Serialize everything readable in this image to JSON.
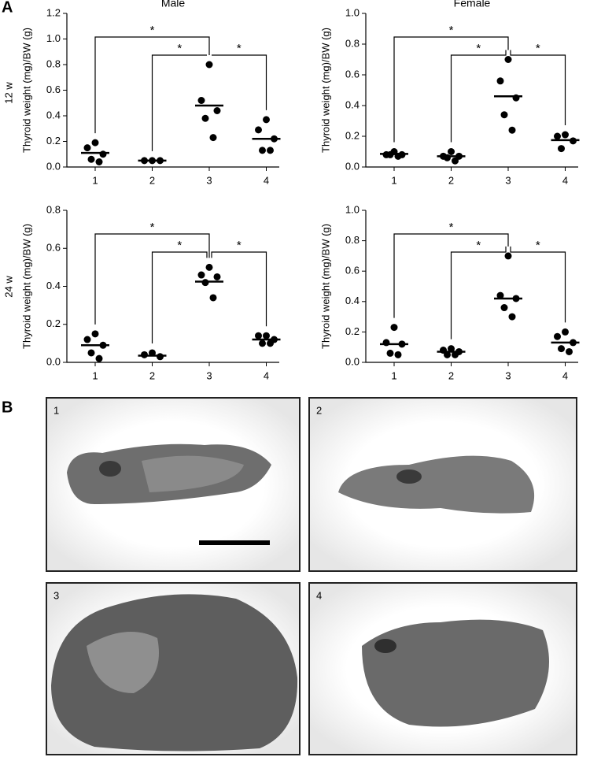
{
  "panel_labels": [
    "A",
    "B"
  ],
  "row_labels": [
    "12 w",
    "24 w"
  ],
  "chart_data": [
    {
      "type": "dotplot",
      "title": "Male",
      "ylabel": "Thyroid weight (mg)/BW (g)",
      "categories": [
        "1",
        "2",
        "3",
        "4"
      ],
      "points": [
        [
          0.19,
          0.15,
          0.1,
          0.06,
          0.04
        ],
        [
          0.05,
          0.05,
          0.05
        ],
        [
          0.8,
          0.52,
          0.44,
          0.38,
          0.23
        ],
        [
          0.37,
          0.29,
          0.22,
          0.13,
          0.13
        ]
      ],
      "means": [
        0.11,
        0.05,
        0.48,
        0.22
      ],
      "color": "#000000",
      "ylim": [
        0,
        1.2
      ],
      "yticks": [
        {
          "value": 0,
          "label": "0.0"
        },
        0.2,
        0.4,
        0.6,
        0.8,
        {
          "value": 1,
          "label": "1.0"
        },
        1.2
      ],
      "annotations": [
        "*",
        "*",
        "*"
      ]
    },
    {
      "type": "dotplot",
      "title": "Female",
      "ylabel": "Thyroid weight (mg)/BW (g)",
      "categories": [
        "1",
        "2",
        "3",
        "4"
      ],
      "points": [
        [
          0.1,
          0.08,
          0.08,
          0.08,
          0.07
        ],
        [
          0.1,
          0.07,
          0.07,
          0.06,
          0.04
        ],
        [
          0.7,
          0.56,
          0.45,
          0.34,
          0.24
        ],
        [
          0.21,
          0.2,
          0.17,
          0.12
        ]
      ],
      "means": [
        0.085,
        0.07,
        0.46,
        0.175
      ],
      "color": "#000000",
      "ylim": [
        0,
        1.0
      ],
      "yticks": [
        {
          "value": 0,
          "label": "0.0"
        },
        0.2,
        0.4,
        0.6,
        0.8,
        {
          "value": 1,
          "label": "1.0"
        }
      ],
      "annotations": [
        "*",
        "*",
        "*"
      ]
    },
    {
      "type": "dotplot",
      "ylabel": "Thyroid weight (mg)/BW (g)",
      "categories": [
        "1",
        "2",
        "3",
        "4"
      ],
      "points": [
        [
          0.15,
          0.12,
          0.09,
          0.05,
          0.02
        ],
        [
          0.05,
          0.04,
          0.03
        ],
        [
          0.5,
          0.46,
          0.45,
          0.42,
          0.34
        ],
        [
          0.14,
          0.14,
          0.12,
          0.1,
          0.1
        ]
      ],
      "means": [
        0.09,
        0.035,
        0.425,
        0.12
      ],
      "color": "#000000",
      "ylim": [
        0,
        0.8
      ],
      "yticks": [
        {
          "value": 0,
          "label": "0.0"
        },
        0.2,
        0.4,
        0.6,
        0.8
      ],
      "annotations": [
        "*",
        "*",
        "*"
      ]
    },
    {
      "type": "dotplot",
      "ylabel": "Thyroid weight (mg)/BW (g)",
      "categories": [
        "1",
        "2",
        "3",
        "4"
      ],
      "points": [
        [
          0.23,
          0.13,
          0.12,
          0.06,
          0.05
        ],
        [
          0.09,
          0.08,
          0.07,
          0.05,
          0.05
        ],
        [
          0.7,
          0.44,
          0.42,
          0.36,
          0.3
        ],
        [
          0.2,
          0.17,
          0.13,
          0.09,
          0.07
        ]
      ],
      "means": [
        0.12,
        0.07,
        0.42,
        0.13
      ],
      "color": "#000000",
      "ylim": [
        0,
        1.0
      ],
      "yticks": [
        {
          "value": 0,
          "label": "0.0"
        },
        0.2,
        0.4,
        0.6,
        0.8,
        {
          "value": 1,
          "label": "1.0"
        }
      ],
      "annotations": [
        "*",
        "*",
        "*"
      ]
    }
  ],
  "images": [
    {
      "label": "1"
    },
    {
      "label": "2"
    },
    {
      "label": "3"
    },
    {
      "label": "4"
    }
  ]
}
